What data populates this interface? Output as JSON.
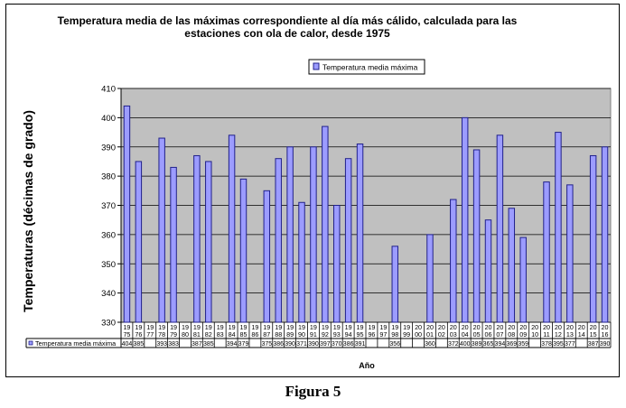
{
  "caption": "Figura 5",
  "chart_data": {
    "type": "bar",
    "title_lines": [
      "Temperatura media de las máximas correspondiente al día más cálido, calculada para las",
      "estaciones con ola de calor, desde 1975"
    ],
    "ylabel": "Temperaturas (décimas de grado)",
    "xlabel": "Año",
    "ylim": [
      330,
      410
    ],
    "yticks": [
      330,
      340,
      350,
      360,
      370,
      380,
      390,
      400,
      410
    ],
    "grid": true,
    "legend_position": "top-center",
    "colors": {
      "bar_fill": "#9c9cff",
      "bar_stroke": "#20208a",
      "plot_bg": "#c0c0c0"
    },
    "categories": [
      [
        "19",
        "75"
      ],
      [
        "19",
        "76"
      ],
      [
        "19",
        "77"
      ],
      [
        "19",
        "78"
      ],
      [
        "19",
        "79"
      ],
      [
        "19",
        "80"
      ],
      [
        "19",
        "81"
      ],
      [
        "19",
        "82"
      ],
      [
        "19",
        "83"
      ],
      [
        "19",
        "84"
      ],
      [
        "19",
        "85"
      ],
      [
        "19",
        "86"
      ],
      [
        "19",
        "87"
      ],
      [
        "19",
        "88"
      ],
      [
        "19",
        "89"
      ],
      [
        "19",
        "90"
      ],
      [
        "19",
        "91"
      ],
      [
        "19",
        "92"
      ],
      [
        "19",
        "93"
      ],
      [
        "19",
        "94"
      ],
      [
        "19",
        "95"
      ],
      [
        "19",
        "96"
      ],
      [
        "19",
        "97"
      ],
      [
        "19",
        "98"
      ],
      [
        "19",
        "99"
      ],
      [
        "20",
        "00"
      ],
      [
        "20",
        "01"
      ],
      [
        "20",
        "02"
      ],
      [
        "20",
        "03"
      ],
      [
        "20",
        "04"
      ],
      [
        "20",
        "05"
      ],
      [
        "20",
        "06"
      ],
      [
        "20",
        "07"
      ],
      [
        "20",
        "08"
      ],
      [
        "20",
        "09"
      ],
      [
        "20",
        "10"
      ],
      [
        "20",
        "11"
      ],
      [
        "20",
        "12"
      ],
      [
        "20",
        "13"
      ],
      [
        "20",
        "14"
      ],
      [
        "20",
        "15"
      ],
      [
        "20",
        "16"
      ]
    ],
    "series": [
      {
        "name": "Temperatura media máxima",
        "table_label": "Temperatura media máxima",
        "values": [
          404,
          385,
          null,
          393,
          383,
          null,
          387,
          385,
          null,
          394,
          379,
          null,
          375,
          386,
          390,
          371,
          390,
          397,
          370,
          386,
          391,
          null,
          null,
          356,
          null,
          null,
          360,
          null,
          372,
          400,
          389,
          365,
          394,
          369,
          359,
          null,
          378,
          395,
          377,
          null,
          387,
          390
        ]
      }
    ]
  }
}
